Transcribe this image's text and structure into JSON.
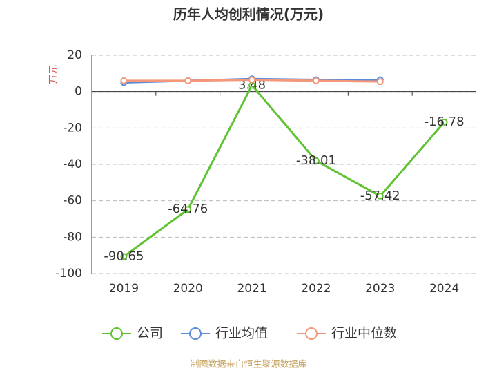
{
  "chart_data": {
    "type": "line",
    "title": "历年人均创利情况(万元)",
    "y_label": "万元",
    "categories": [
      "2019",
      "2020",
      "2021",
      "2022",
      "2023",
      "2024"
    ],
    "series": [
      {
        "name": "公司",
        "color": "#5ec232",
        "values": [
          -90.65,
          -64.76,
          3.48,
          -38.01,
          -57.42,
          -16.78
        ],
        "show_labels": true
      },
      {
        "name": "行业均值",
        "color": "#5b8bd9",
        "values": [
          5,
          6,
          7,
          6.5,
          6.5,
          null
        ]
      },
      {
        "name": "行业中位数",
        "color": "#f4977a",
        "values": [
          6,
          6,
          6.5,
          6,
          5.5,
          null
        ]
      }
    ],
    "ylim": [
      -100,
      20
    ],
    "yticks": [
      -100,
      -80,
      -60,
      -40,
      -20,
      0,
      20
    ],
    "grid": true,
    "source": "制图数据来自恒生聚源数据库"
  }
}
